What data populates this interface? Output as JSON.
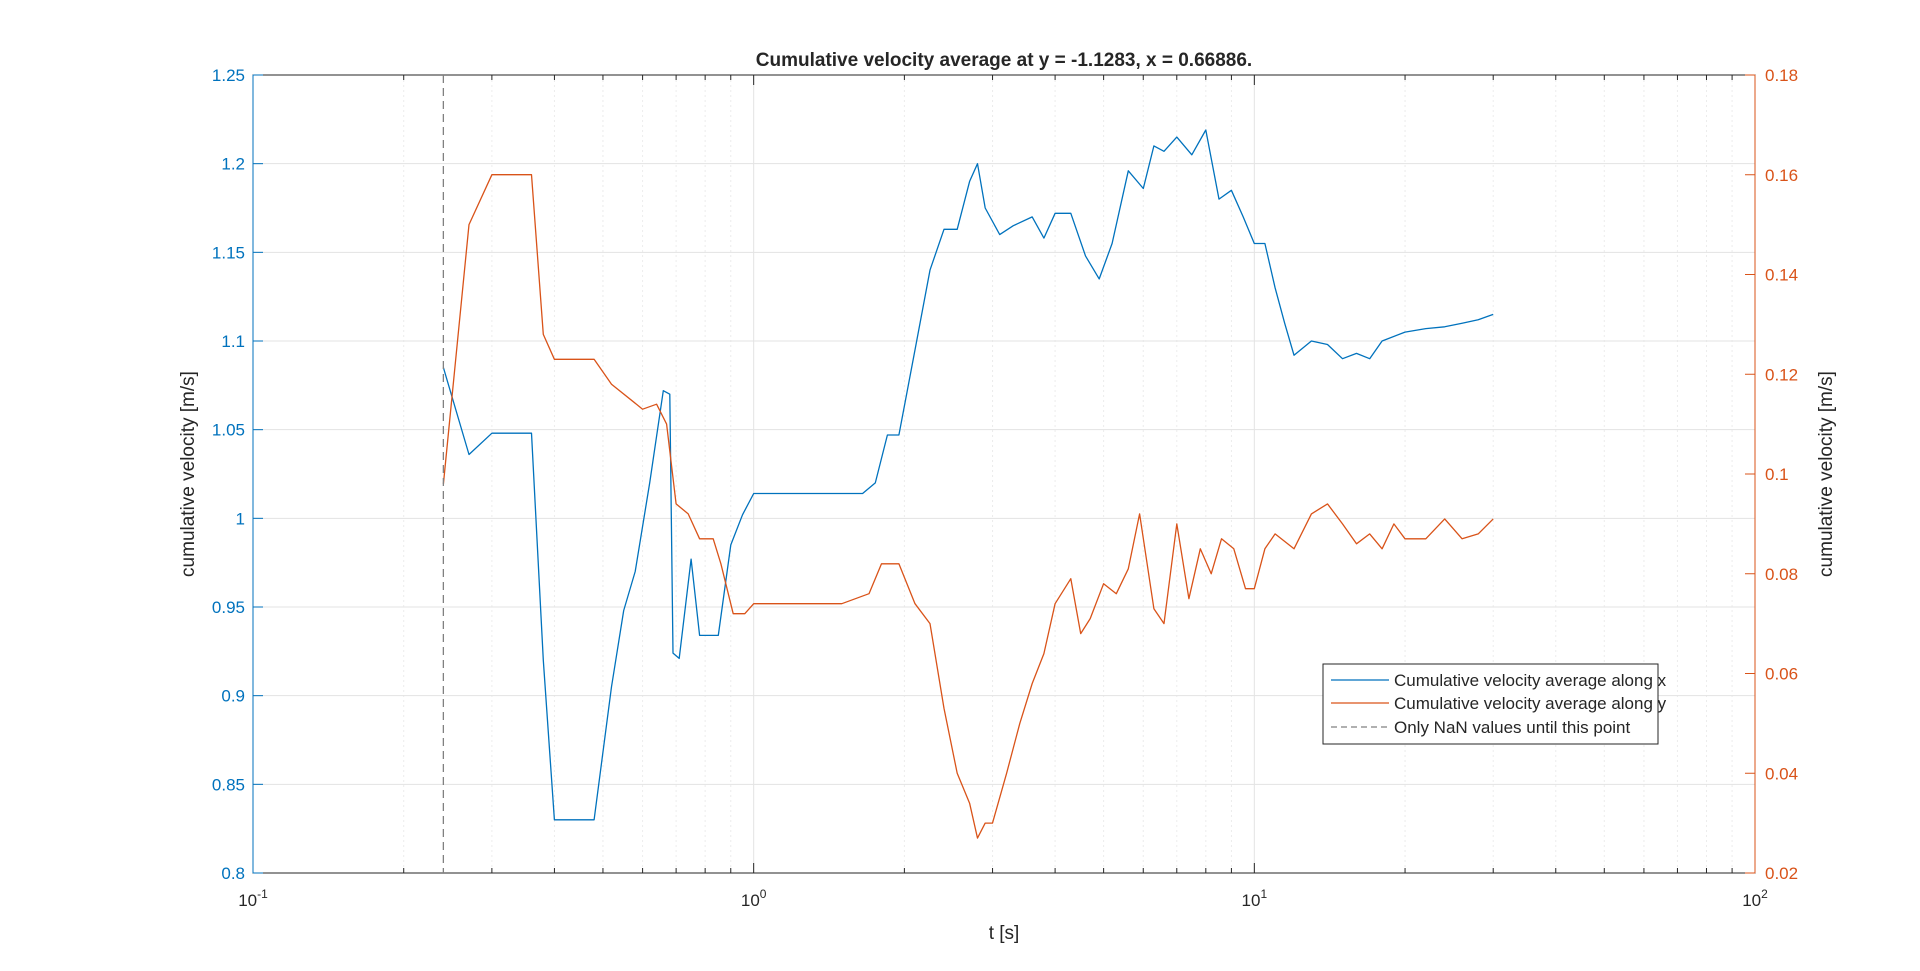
{
  "chart_data": {
    "type": "line",
    "title": "Cumulative velocity average at y = -1.1283, x = 0.66886.",
    "xlabel": "t [s]",
    "ylabel_left": "cumulative velocity [m/s]",
    "ylabel_right": "cumulative velocity [m/s]",
    "xscale": "log",
    "xlim": [
      0.1,
      100
    ],
    "ylim_left": [
      0.8,
      1.25
    ],
    "ylim_right": [
      0.02,
      0.18
    ],
    "grid": true,
    "legend_location": "bottom-right",
    "x_ticks": [
      {
        "base": "10",
        "exp": "-1"
      },
      {
        "base": "10",
        "exp": "0"
      },
      {
        "base": "10",
        "exp": "1"
      },
      {
        "base": "10",
        "exp": "2"
      }
    ],
    "y_ticks_left": [
      "0.8",
      "0.85",
      "0.9",
      "0.95",
      "1",
      "1.05",
      "1.1",
      "1.15",
      "1.2",
      "1.25"
    ],
    "y_ticks_right": [
      "0.02",
      "0.04",
      "0.06",
      "0.08",
      "0.1",
      "0.12",
      "0.14",
      "0.16",
      "0.18"
    ],
    "colors": {
      "series_x": "#0072BD",
      "series_y": "#D95319",
      "nan_marker": "#808080"
    },
    "series": [
      {
        "name": "Cumulative velocity average along x",
        "axis": "left",
        "x": [
          0.24,
          0.27,
          0.3,
          0.36,
          0.38,
          0.4,
          0.44,
          0.48,
          0.52,
          0.55,
          0.58,
          0.62,
          0.66,
          0.68,
          0.69,
          0.71,
          0.75,
          0.78,
          0.8,
          0.85,
          0.9,
          0.95,
          1.0,
          1.1,
          1.3,
          1.5,
          1.65,
          1.75,
          1.85,
          1.95,
          2.1,
          2.25,
          2.4,
          2.55,
          2.7,
          2.8,
          2.9,
          3.1,
          3.3,
          3.6,
          3.8,
          4.0,
          4.3,
          4.6,
          4.9,
          5.2,
          5.6,
          6.0,
          6.3,
          6.6,
          7.0,
          7.5,
          8.0,
          8.5,
          9.0,
          9.5,
          10.0,
          10.5,
          11.0,
          11.5,
          12.0,
          13.0,
          14.0,
          15.0,
          16.0,
          17.0,
          18.0,
          20.0,
          22.0,
          24.0,
          26.0,
          28.0,
          30.0
        ],
        "y": [
          1.085,
          1.036,
          1.048,
          1.048,
          0.92,
          0.83,
          0.83,
          0.83,
          0.905,
          0.948,
          0.97,
          1.02,
          1.072,
          1.07,
          0.924,
          0.921,
          0.977,
          0.934,
          0.934,
          0.934,
          0.985,
          1.002,
          1.014,
          1.014,
          1.014,
          1.014,
          1.014,
          1.02,
          1.047,
          1.047,
          1.095,
          1.14,
          1.163,
          1.163,
          1.19,
          1.2,
          1.175,
          1.16,
          1.165,
          1.17,
          1.158,
          1.172,
          1.172,
          1.148,
          1.135,
          1.155,
          1.196,
          1.186,
          1.21,
          1.207,
          1.215,
          1.205,
          1.219,
          1.18,
          1.185,
          1.17,
          1.155,
          1.155,
          1.13,
          1.11,
          1.092,
          1.1,
          1.098,
          1.09,
          1.093,
          1.09,
          1.1,
          1.105,
          1.107,
          1.108,
          1.11,
          1.112,
          1.115
        ]
      },
      {
        "name": "Cumulative velocity average along y",
        "axis": "right",
        "x": [
          0.24,
          0.27,
          0.3,
          0.36,
          0.38,
          0.4,
          0.48,
          0.52,
          0.6,
          0.64,
          0.67,
          0.7,
          0.74,
          0.78,
          0.83,
          0.86,
          0.91,
          0.96,
          1.0,
          1.2,
          1.5,
          1.7,
          1.8,
          1.95,
          2.1,
          2.25,
          2.4,
          2.55,
          2.7,
          2.8,
          2.9,
          3.0,
          3.2,
          3.4,
          3.6,
          3.8,
          4.0,
          4.3,
          4.5,
          4.7,
          5.0,
          5.3,
          5.6,
          5.9,
          6.3,
          6.6,
          7.0,
          7.4,
          7.8,
          8.2,
          8.6,
          9.1,
          9.6,
          10.0,
          10.5,
          11.0,
          12.0,
          13.0,
          14.0,
          15.0,
          16.0,
          17.0,
          18.0,
          19.0,
          20.0,
          22.0,
          24.0,
          26.0,
          28.0,
          30.0
        ],
        "y": [
          0.098,
          0.15,
          0.16,
          0.16,
          0.128,
          0.123,
          0.123,
          0.118,
          0.113,
          0.114,
          0.11,
          0.094,
          0.092,
          0.087,
          0.087,
          0.082,
          0.072,
          0.072,
          0.074,
          0.074,
          0.074,
          0.076,
          0.082,
          0.082,
          0.074,
          0.07,
          0.053,
          0.04,
          0.034,
          0.027,
          0.03,
          0.03,
          0.04,
          0.05,
          0.058,
          0.064,
          0.074,
          0.079,
          0.068,
          0.071,
          0.078,
          0.076,
          0.081,
          0.092,
          0.073,
          0.07,
          0.09,
          0.075,
          0.085,
          0.08,
          0.087,
          0.085,
          0.077,
          0.077,
          0.085,
          0.088,
          0.085,
          0.092,
          0.094,
          0.09,
          0.086,
          0.088,
          0.085,
          0.09,
          0.087,
          0.087,
          0.091,
          0.087,
          0.088,
          0.091
        ]
      },
      {
        "name": "Only NaN values until this point",
        "type": "vline",
        "x": 0.24
      }
    ]
  }
}
